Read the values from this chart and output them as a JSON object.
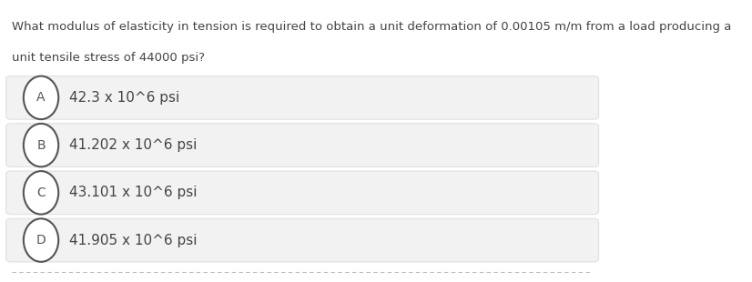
{
  "question_line1": "What modulus of elasticity in tension is required to obtain a unit deformation of 0.00105 m/m from a load producing a",
  "question_line2": "unit tensile stress of 44000 psi?",
  "options": [
    {
      "label": "A",
      "text": "42.3 x 10^6 psi"
    },
    {
      "label": "B",
      "text": "41.202 x 10^6 psi"
    },
    {
      "label": "C",
      "text": "43.101 x 10^6 psi"
    },
    {
      "label": "D",
      "text": "41.905 x 10^6 psi"
    }
  ],
  "bg_color": "#ffffff",
  "option_bg_color": "#f2f2f2",
  "option_border_color": "#e0e0e0",
  "text_color": "#444444",
  "circle_color": "#555555",
  "question_fontsize": 9.5,
  "option_fontsize": 11,
  "dashed_line_color": "#bbbbbb",
  "fig_width": 8.26,
  "fig_height": 3.1
}
